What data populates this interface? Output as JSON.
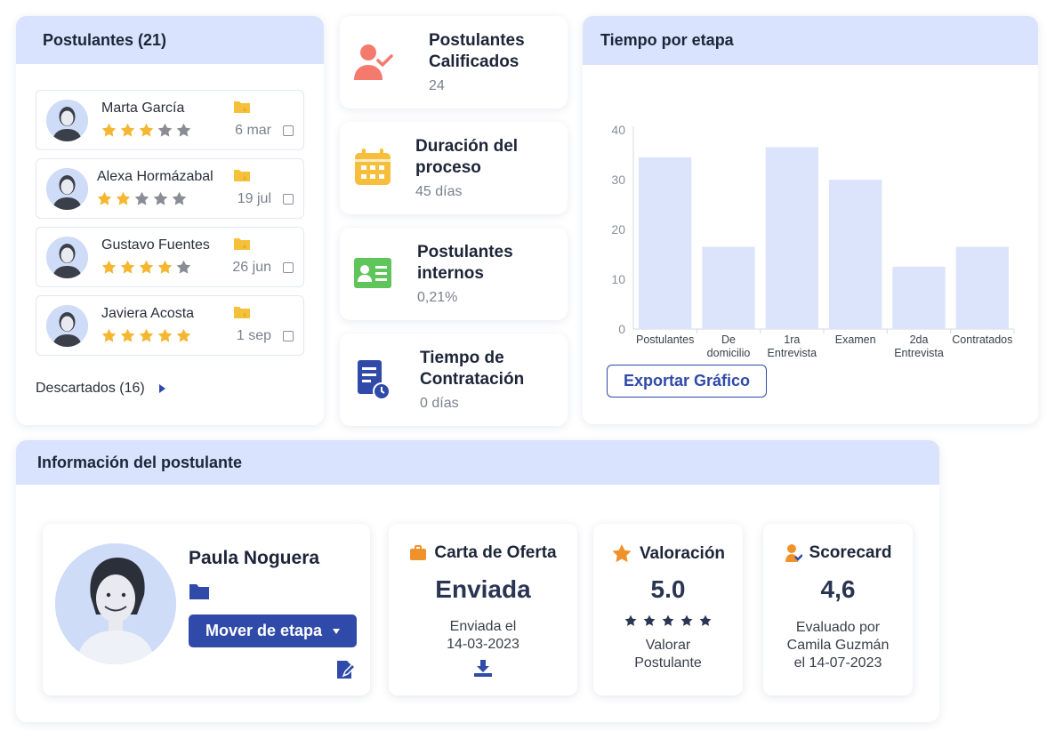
{
  "applicants": {
    "title": "Postulantes (21)",
    "items": [
      {
        "name": "Marta García",
        "date": "6 mar",
        "rating": 3
      },
      {
        "name": "Alexa Hormázabal",
        "date": "19 jul",
        "rating": 2
      },
      {
        "name": "Gustavo Fuentes",
        "date": "26 jun",
        "rating": 4
      },
      {
        "name": "Javiera Acosta",
        "date": "1 sep",
        "rating": 5
      }
    ],
    "discarded_label": "Descartados (16)"
  },
  "metrics": [
    {
      "title": "Postulantes Calificados",
      "value": "24",
      "icon": "user-check-icon"
    },
    {
      "title": "Duración del proceso",
      "value": "45 días",
      "icon": "calendar-icon"
    },
    {
      "title": "Postulantes internos",
      "value": "0,21%",
      "icon": "id-card-icon"
    },
    {
      "title": "Tiempo de Contratación",
      "value": "0 días",
      "icon": "document-clock-icon"
    }
  ],
  "chart_card": {
    "title": "Tiempo por etapa",
    "export_label": "Exportar Gráfico"
  },
  "chart_data": {
    "type": "bar",
    "categories": [
      "Postulantes",
      "De domicilio",
      "1ra Entrevista",
      "Examen",
      "2da Entrevista",
      "Contratados"
    ],
    "values": [
      34.5,
      16.5,
      36.5,
      30,
      12.5,
      16.5
    ],
    "ylim": [
      0,
      40
    ],
    "yticks": [
      0,
      10,
      20,
      30,
      40
    ],
    "grid": false,
    "bar_color": "#dbe4fb"
  },
  "info": {
    "title": "Información del postulante",
    "profile": {
      "name": "Paula Noguera",
      "move_label": "Mover de etapa"
    },
    "offer": {
      "title": "Carta de Oferta",
      "status": "Enviada",
      "line1": "Enviada el",
      "line2": "14-03-2023"
    },
    "rating": {
      "title": "Valoración",
      "value": "5.0",
      "line1": "Valorar",
      "line2": "Postulante"
    },
    "score": {
      "title": "Scorecard",
      "value": "4,6",
      "line1": "Evaluado por",
      "line2": "Camila Guzmán",
      "line3": "el 14-07-2023"
    }
  },
  "colors": {
    "accent": "#2f4aa8",
    "header_bg": "#d9e3fd",
    "star_on": "#f5b731",
    "star_off": "#8a8d95",
    "orange": "#f0922b"
  }
}
